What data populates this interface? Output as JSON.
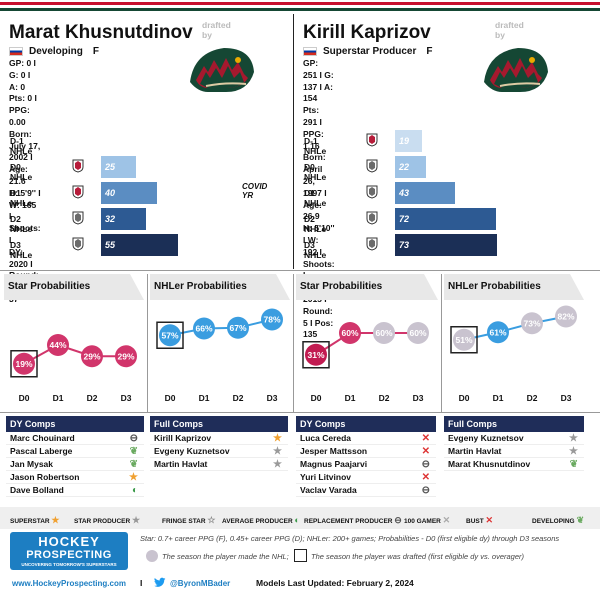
{
  "header_stripes": [
    "#c8102e",
    "#ffffff",
    "#154734"
  ],
  "drafted_by": "drafted by",
  "players": [
    {
      "name": "Marat Khusnutdinov",
      "tier": "Developing",
      "position": "F",
      "line1": "GP: 0 I G: 0 I A: 0",
      "line2": "Pts: 0 I PPG: 0.00",
      "line3": "Born: July 17, 2002 I Age: 21.6",
      "line4": "H: 5'9'' I W: 165 I Shoots: L",
      "line5": "DY: 2020 I Round: 2 I Pos: 37",
      "seasons": [
        {
          "label": "D-1 NHLe",
          "value": "",
          "num": 0,
          "color": "#dbe6f2",
          "league": "none"
        },
        {
          "label": "D0 NHLe",
          "value": "25",
          "num": 25,
          "color": "#9ec3e6",
          "league": "khl"
        },
        {
          "label": "D1 NHLe",
          "value": "40",
          "num": 40,
          "color": "#5b8dc2",
          "league": "khl"
        },
        {
          "label": "D2 NHLe",
          "value": "32",
          "num": 32,
          "color": "#2d5a93",
          "league": "khl-gray"
        },
        {
          "label": "D3 NHLe",
          "value": "55",
          "num": 55,
          "color": "#1b2f56",
          "league": "khl-gray"
        }
      ],
      "covid_note": "COVID YR",
      "star_title": "Star Probabilities",
      "star_probs": [
        {
          "label": "D0",
          "value": "19%",
          "num": 19
        },
        {
          "label": "D1",
          "value": "44%",
          "num": 44
        },
        {
          "label": "D2",
          "value": "29%",
          "num": 29
        },
        {
          "label": "D3",
          "value": "29%",
          "num": 29
        }
      ],
      "nhl_title": "NHLer Probabilities",
      "nhl_probs": [
        {
          "label": "D0",
          "value": "57%",
          "num": 57
        },
        {
          "label": "D1",
          "value": "66%",
          "num": 66
        },
        {
          "label": "D2",
          "value": "67%",
          "num": 67
        },
        {
          "label": "D3",
          "value": "78%",
          "num": 78
        }
      ],
      "dy_title": "DY Comps",
      "dy_comps": [
        {
          "name": "Marc Chouinard",
          "icon": "replacement"
        },
        {
          "name": "Pascal Laberge",
          "icon": "developing"
        },
        {
          "name": "Jan Mysak",
          "icon": "developing"
        },
        {
          "name": "Jason Robertson",
          "icon": "superstar"
        },
        {
          "name": "Dave Bolland",
          "icon": "average"
        }
      ],
      "full_title": "Full Comps",
      "full_comps": [
        {
          "name": "Kirill Kaprizov",
          "icon": "superstar"
        },
        {
          "name": "Evgeny Kuznetsov",
          "icon": "star-producer"
        },
        {
          "name": "Martin Havlat",
          "icon": "star-producer"
        }
      ]
    },
    {
      "name": "Kirill Kaprizov",
      "tier": "Superstar Producer",
      "position": "F",
      "line1": "GP: 251 I G: 137 I A: 154",
      "line2": "Pts: 291 I PPG: 1.16",
      "line3": "Born: April 26, 1997 I Age: 26.9",
      "line4": "H: 5'10'' I W: 192 I Shoots: L",
      "line5": "DY: 2015 I Round: 5 I Pos: 135",
      "seasons": [
        {
          "label": "D-1 NHLe",
          "value": "19",
          "num": 19,
          "color": "#c9ddf0",
          "league": "khl"
        },
        {
          "label": "D0 NHLe",
          "value": "22",
          "num": 22,
          "color": "#9ec3e6",
          "league": "khl-gray"
        },
        {
          "label": "D1 NHLe",
          "value": "43",
          "num": 43,
          "color": "#5b8dc2",
          "league": "khl-gray"
        },
        {
          "label": "D2 NHLe",
          "value": "72",
          "num": 72,
          "color": "#2d5a93",
          "league": "khl-gray"
        },
        {
          "label": "D3 NHLe",
          "value": "73",
          "num": 73,
          "color": "#1b2f56",
          "league": "khl-gray"
        }
      ],
      "covid_note": "",
      "star_title": "Star Probabilities",
      "star_probs": [
        {
          "label": "D0",
          "value": "31%",
          "num": 31
        },
        {
          "label": "D1",
          "value": "60%",
          "num": 60
        },
        {
          "label": "D2",
          "value": "60%",
          "num": 60
        },
        {
          "label": "D3",
          "value": "60%",
          "num": 60
        }
      ],
      "nhl_title": "NHLer Probabilities",
      "nhl_probs": [
        {
          "label": "D0",
          "value": "51%",
          "num": 51
        },
        {
          "label": "D1",
          "value": "61%",
          "num": 61
        },
        {
          "label": "D2",
          "value": "73%",
          "num": 73
        },
        {
          "label": "D3",
          "value": "82%",
          "num": 82
        }
      ],
      "dy_title": "DY Comps",
      "dy_comps": [
        {
          "name": "Luca Cereda",
          "icon": "bust"
        },
        {
          "name": "Jesper Mattsson",
          "icon": "bust"
        },
        {
          "name": "Magnus Paajarvi",
          "icon": "replacement"
        },
        {
          "name": "Yuri Litvinov",
          "icon": "bust"
        },
        {
          "name": "Vaclav Varada",
          "icon": "replacement"
        }
      ],
      "full_title": "Full Comps",
      "full_comps": [
        {
          "name": "Evgeny Kuznetsov",
          "icon": "star-producer"
        },
        {
          "name": "Martin Havlat",
          "icon": "star-producer"
        },
        {
          "name": "Marat Khusnutdinov",
          "icon": "developing"
        }
      ]
    }
  ],
  "legend": [
    {
      "label": "Superstar",
      "icon": "superstar"
    },
    {
      "label": "Star Producer",
      "icon": "star-producer"
    },
    {
      "label": "Fringe Star",
      "icon": "fringe-star"
    },
    {
      "label": "Average Producer",
      "icon": "average"
    },
    {
      "label": "Replacement Producer",
      "icon": "replacement"
    },
    {
      "label": "100 Gamer",
      "icon": "100-gamer"
    },
    {
      "label": "Bust",
      "icon": "bust"
    },
    {
      "label": "Developing",
      "icon": "developing"
    }
  ],
  "brand": {
    "line1": "HOCKEY",
    "line2": "PROSPECTING",
    "tagline": "UNCOVERING TOMORROW'S SUPERSTARS"
  },
  "footnote": {
    "defs": "Star: 0.7+ career PPG (F), 0.45+ career PPG (D); NHLer: 200+ games; Probabilities - D0 (first eligible dy) through D3 seasons",
    "circle_note": "The season the player made the NHL;",
    "square_note": "The season the player was drafted (first eligible dy vs. overager)"
  },
  "footer": {
    "website": "www.HockeyProspecting.com",
    "sep": "I",
    "twitter": "@ByronMBader",
    "updated": "Models Last Updated: February 2, 2024"
  },
  "colors": {
    "star_line": "#d1356b",
    "nhl_line": "#3a9de0",
    "made_nhl": "#c9c3cf",
    "comp_header": "#1f2d59"
  }
}
